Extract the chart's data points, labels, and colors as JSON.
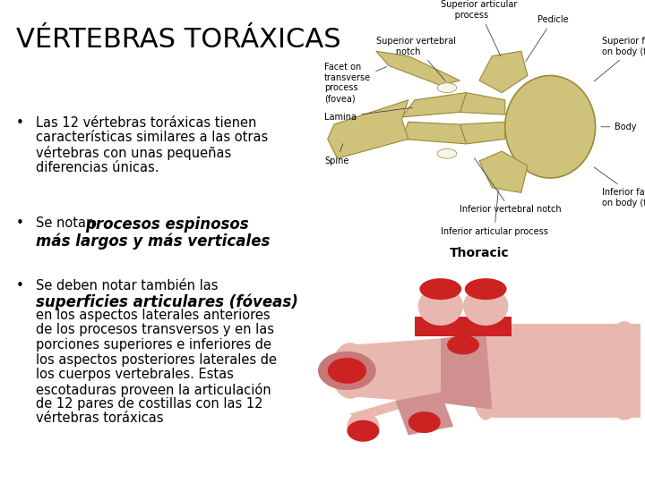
{
  "title": "VÉRTEBRAS TORÁXICAS",
  "title_fontsize": 22,
  "background_color": "#ffffff",
  "text_color": "#000000",
  "bullet1_lines": [
    "Las 12 vértebras toráxicas tienen",
    "características similares a las otras",
    "vértebras con unas pequeñas",
    "diferencias únicas."
  ],
  "bullet2_normal": "Se notan ",
  "bullet2_bold_italic": "procesos espinosos",
  "bullet2_bold_italic2": "más largos y más verticales",
  "bullet3_normal": "Se deben notar también las",
  "bullet3_bold_italic": "superficies articulares (fóveas)",
  "bullet3_rest": [
    "en los aspectos laterales anteriores",
    "de los procesos transversos y en las",
    "porciones superiores e inferiores de",
    "los aspectos posteriores laterales de",
    "los cuerpos vertebrales. Estas",
    "escotaduras proveen la articulación",
    "de 12 pares de costillas con las 12",
    "vértebras toráxicas"
  ],
  "thoracic_label": "Thoracic",
  "bone_color": "#cfc27a",
  "bone_edge": "#9a8a3a",
  "bone_color2": "#d4cc8a",
  "pink_main": "#e8b8b0",
  "pink_dark": "#d09090",
  "red_facet": "#cc2222",
  "img1_bg": "#f8f5ee",
  "img2_bg": "#000000",
  "label_fontsize": 7.0,
  "text_fontsize": 10.5,
  "bullet_fontsize": 11,
  "bi_fontsize": 12
}
